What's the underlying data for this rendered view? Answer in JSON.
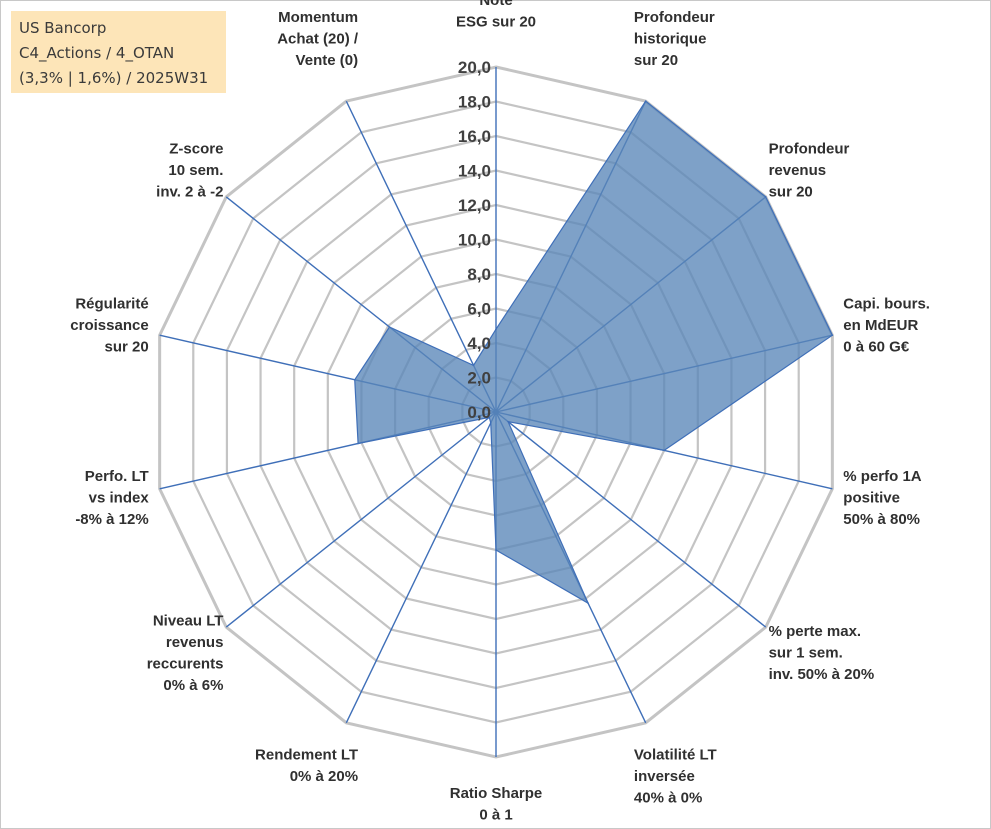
{
  "info_box": {
    "line1": "US Bancorp",
    "line2": "C4_Actions / 4_OTAN",
    "line3": "(3,3% | 1,6%) / 2025W31"
  },
  "colors": {
    "grid": "#c4c4c4",
    "spoke": "#3f6fb8",
    "fill": "#5a86b8",
    "stroke": "#3f6fb8"
  },
  "chart_data": {
    "type": "radar",
    "title": "",
    "rlim": [
      0,
      20
    ],
    "r_tick_step": 2,
    "r_ticks": [
      "0,0",
      "2,0",
      "4,0",
      "6,0",
      "8,0",
      "10,0",
      "12,0",
      "14,0",
      "16,0",
      "18,0",
      "20,0"
    ],
    "axes": [
      [
        "Note",
        "ESG sur 20"
      ],
      [
        "Profondeur",
        "historique",
        "sur 20"
      ],
      [
        "Profondeur",
        "revenus",
        "sur 20"
      ],
      [
        "Capi. bours.",
        "en MdEUR",
        "0 à 60 G€"
      ],
      [
        "% perfo 1A",
        "positive",
        "50% à 80%"
      ],
      [
        "% perte max.",
        "sur 1 sem.",
        "inv. 50% à 20%"
      ],
      [
        "Volatilité LT",
        "inversée",
        "40% à 0%"
      ],
      [
        "Ratio Sharpe",
        "0 à 1"
      ],
      [
        "Rendement LT",
        "0% à 20%"
      ],
      [
        "Niveau LT",
        "revenus",
        "reccurents",
        "0% à 6%"
      ],
      [
        "Perfo. LT",
        "vs index",
        "-8% à 12%"
      ],
      [
        "Régularité",
        "croissance",
        "sur 20"
      ],
      [
        "Z-score",
        "10 sem.",
        "inv. 2 à -2"
      ],
      [
        "Momentum",
        "Achat (20) /",
        "Vente (0)"
      ]
    ],
    "series": [
      {
        "values": [
          4.8,
          20.0,
          20.0,
          20.0,
          10.0,
          0.9,
          12.3,
          8.0,
          0.7,
          0.5,
          8.2,
          8.4,
          7.9,
          3.0
        ]
      }
    ],
    "grid": true,
    "legend": "none"
  }
}
